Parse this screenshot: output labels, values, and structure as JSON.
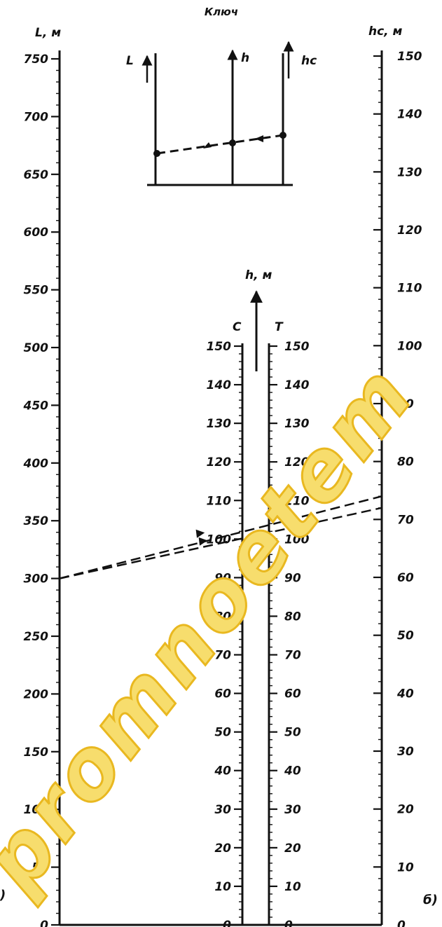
{
  "key": {
    "title": "Ключ",
    "labels": {
      "L": "L",
      "h": "h",
      "hc": "hс"
    }
  },
  "axes": {
    "left": {
      "title": "L, м",
      "min": 0,
      "max": 750,
      "major_step": 50,
      "minor_step": 10
    },
    "right": {
      "title": "hс, м",
      "min": 0,
      "max": 150,
      "major_step": 10,
      "minor_step": 2
    },
    "center": {
      "title": "h, м",
      "left_label": "С",
      "right_label": "Т",
      "min": 0,
      "max": 150,
      "major_step": 10,
      "minor_step": 2
    }
  },
  "edge_marks": {
    "left": ")",
    "right": "б)"
  },
  "watermark": "promnoetem",
  "examples": {
    "left_value": 300,
    "right_values": [
      72,
      74
    ],
    "center_values": [
      100,
      102
    ]
  },
  "colors": {
    "ink": "#111111",
    "watermark_fill": "#f7dd6d",
    "watermark_stroke": "#e9b820"
  }
}
